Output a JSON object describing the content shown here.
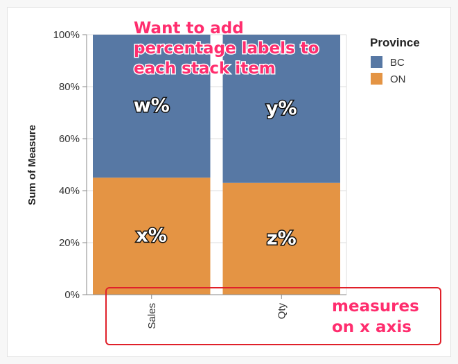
{
  "chart_data": {
    "type": "bar",
    "stacked": true,
    "normalized": true,
    "categories": [
      "Sales",
      "Qty"
    ],
    "series": [
      {
        "name": "BC",
        "color": "#5778a4",
        "values": [
          55,
          57
        ]
      },
      {
        "name": "ON",
        "color": "#e49444",
        "values": [
          45,
          43
        ]
      }
    ],
    "ylabel": "Sum of Measure",
    "ylim": [
      0,
      100
    ],
    "yticks": [
      "0%",
      "20%",
      "40%",
      "60%",
      "80%",
      "100%"
    ],
    "legend": {
      "title": "Province",
      "position": "top-right"
    },
    "grid": true,
    "segment_labels": [
      {
        "category": "Sales",
        "series": "BC",
        "text": "w%"
      },
      {
        "category": "Sales",
        "series": "ON",
        "text": "x%"
      },
      {
        "category": "Qty",
        "series": "BC",
        "text": "y%"
      },
      {
        "category": "Qty",
        "series": "ON",
        "text": "z%"
      }
    ]
  },
  "annotations": {
    "top_lines": [
      "Want to add",
      "percentage labels to",
      "each stack item"
    ],
    "bottom_lines": [
      "measures",
      "on x axis"
    ],
    "color": "#ff2d6e",
    "box_color": "#e0202a"
  }
}
